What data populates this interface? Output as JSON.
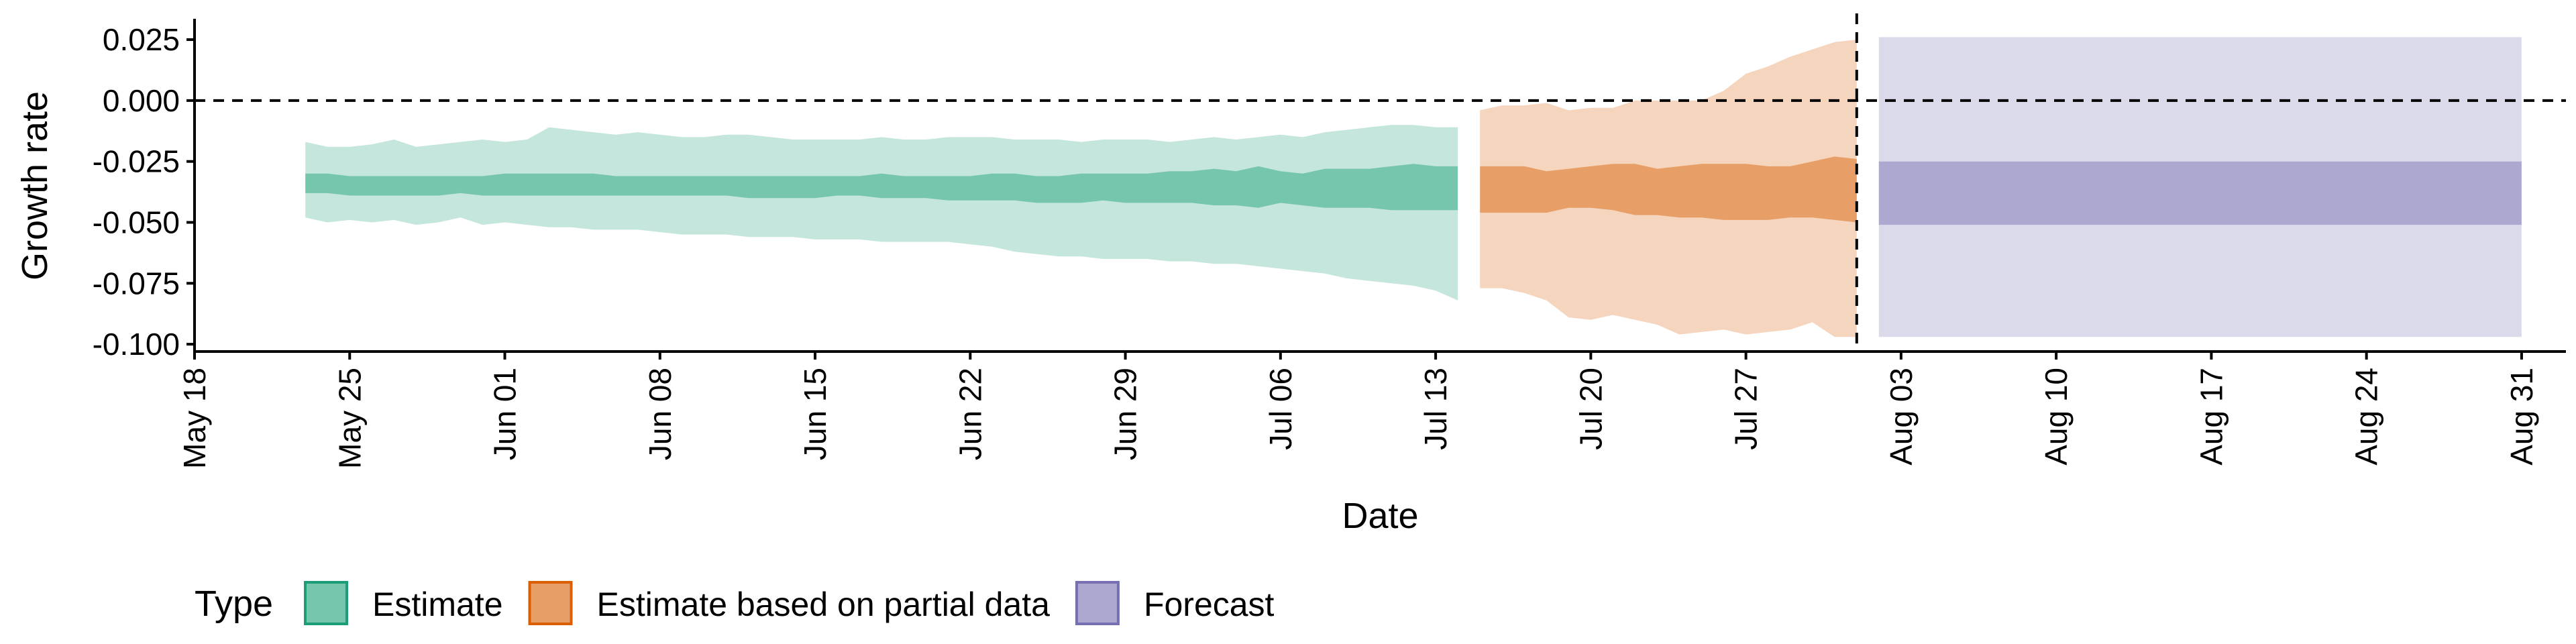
{
  "chart_data": {
    "type": "area",
    "title": "",
    "xlabel": "Date",
    "ylabel": "Growth rate",
    "x_range": [
      "2020-05-18",
      "2020-09-02"
    ],
    "ylim": [
      -0.103,
      0.033
    ],
    "x_ticks": [
      {
        "date": "2020-05-18",
        "label": "May 18"
      },
      {
        "date": "2020-05-25",
        "label": "May 25"
      },
      {
        "date": "2020-06-01",
        "label": "Jun 01"
      },
      {
        "date": "2020-06-08",
        "label": "Jun 08"
      },
      {
        "date": "2020-06-15",
        "label": "Jun 15"
      },
      {
        "date": "2020-06-22",
        "label": "Jun 22"
      },
      {
        "date": "2020-06-29",
        "label": "Jun 29"
      },
      {
        "date": "2020-07-06",
        "label": "Jul 06"
      },
      {
        "date": "2020-07-13",
        "label": "Jul 13"
      },
      {
        "date": "2020-07-20",
        "label": "Jul 20"
      },
      {
        "date": "2020-07-27",
        "label": "Jul 27"
      },
      {
        "date": "2020-08-03",
        "label": "Aug 03"
      },
      {
        "date": "2020-08-10",
        "label": "Aug 10"
      },
      {
        "date": "2020-08-17",
        "label": "Aug 17"
      },
      {
        "date": "2020-08-24",
        "label": "Aug 24"
      },
      {
        "date": "2020-08-31",
        "label": "Aug 31"
      }
    ],
    "y_ticks": [
      {
        "value": 0.025,
        "label": "0.025"
      },
      {
        "value": 0.0,
        "label": "0.000"
      },
      {
        "value": -0.025,
        "label": "-0.025"
      },
      {
        "value": -0.05,
        "label": "-0.050"
      },
      {
        "value": -0.075,
        "label": "-0.075"
      },
      {
        "value": -0.1,
        "label": "-0.100"
      }
    ],
    "reference_lines": [
      {
        "axis": "y",
        "value": 0.0,
        "style": "dashed"
      },
      {
        "axis": "x",
        "value": "2020-08-01",
        "style": "dashed"
      }
    ],
    "grid": false,
    "legend": {
      "title": "Type",
      "position": "bottom-left"
    },
    "series": [
      {
        "name": "Estimate",
        "color": "#1b9e77",
        "x": [
          "2020-05-23",
          "2020-05-24",
          "2020-05-25",
          "2020-05-26",
          "2020-05-27",
          "2020-05-28",
          "2020-05-29",
          "2020-05-30",
          "2020-05-31",
          "2020-06-01",
          "2020-06-02",
          "2020-06-03",
          "2020-06-04",
          "2020-06-05",
          "2020-06-06",
          "2020-06-07",
          "2020-06-08",
          "2020-06-09",
          "2020-06-10",
          "2020-06-11",
          "2020-06-12",
          "2020-06-13",
          "2020-06-14",
          "2020-06-15",
          "2020-06-16",
          "2020-06-17",
          "2020-06-18",
          "2020-06-19",
          "2020-06-20",
          "2020-06-21",
          "2020-06-22",
          "2020-06-23",
          "2020-06-24",
          "2020-06-25",
          "2020-06-26",
          "2020-06-27",
          "2020-06-28",
          "2020-06-29",
          "2020-06-30",
          "2020-07-01",
          "2020-07-02",
          "2020-07-03",
          "2020-07-04",
          "2020-07-05",
          "2020-07-06",
          "2020-07-07",
          "2020-07-08",
          "2020-07-09",
          "2020-07-10",
          "2020-07-11",
          "2020-07-12",
          "2020-07-13",
          "2020-07-14"
        ],
        "outer_upper": [
          -0.017,
          -0.019,
          -0.019,
          -0.018,
          -0.016,
          -0.019,
          -0.018,
          -0.017,
          -0.016,
          -0.017,
          -0.016,
          -0.011,
          -0.012,
          -0.013,
          -0.014,
          -0.013,
          -0.014,
          -0.015,
          -0.015,
          -0.014,
          -0.014,
          -0.015,
          -0.016,
          -0.016,
          -0.016,
          -0.016,
          -0.015,
          -0.016,
          -0.016,
          -0.015,
          -0.015,
          -0.015,
          -0.016,
          -0.016,
          -0.016,
          -0.017,
          -0.016,
          -0.016,
          -0.016,
          -0.017,
          -0.016,
          -0.015,
          -0.016,
          -0.015,
          -0.014,
          -0.015,
          -0.013,
          -0.012,
          -0.011,
          -0.01,
          -0.01,
          -0.011,
          -0.011
        ],
        "outer_lower": [
          -0.048,
          -0.05,
          -0.049,
          -0.05,
          -0.049,
          -0.051,
          -0.05,
          -0.048,
          -0.051,
          -0.05,
          -0.051,
          -0.052,
          -0.052,
          -0.053,
          -0.053,
          -0.053,
          -0.054,
          -0.055,
          -0.055,
          -0.055,
          -0.056,
          -0.056,
          -0.056,
          -0.057,
          -0.057,
          -0.057,
          -0.058,
          -0.058,
          -0.058,
          -0.058,
          -0.059,
          -0.06,
          -0.062,
          -0.063,
          -0.064,
          -0.064,
          -0.065,
          -0.065,
          -0.065,
          -0.066,
          -0.066,
          -0.067,
          -0.067,
          -0.068,
          -0.069,
          -0.07,
          -0.071,
          -0.073,
          -0.074,
          -0.075,
          -0.076,
          -0.078,
          -0.082
        ],
        "inner_upper": [
          -0.03,
          -0.03,
          -0.031,
          -0.031,
          -0.031,
          -0.031,
          -0.031,
          -0.031,
          -0.031,
          -0.03,
          -0.03,
          -0.03,
          -0.03,
          -0.03,
          -0.031,
          -0.031,
          -0.031,
          -0.031,
          -0.031,
          -0.031,
          -0.031,
          -0.031,
          -0.031,
          -0.031,
          -0.031,
          -0.031,
          -0.03,
          -0.031,
          -0.031,
          -0.031,
          -0.031,
          -0.03,
          -0.03,
          -0.031,
          -0.031,
          -0.03,
          -0.03,
          -0.03,
          -0.03,
          -0.029,
          -0.029,
          -0.028,
          -0.029,
          -0.027,
          -0.029,
          -0.03,
          -0.028,
          -0.028,
          -0.028,
          -0.027,
          -0.026,
          -0.027,
          -0.027
        ],
        "inner_lower": [
          -0.038,
          -0.038,
          -0.039,
          -0.039,
          -0.039,
          -0.039,
          -0.039,
          -0.038,
          -0.039,
          -0.039,
          -0.039,
          -0.039,
          -0.039,
          -0.039,
          -0.039,
          -0.039,
          -0.039,
          -0.039,
          -0.039,
          -0.039,
          -0.04,
          -0.04,
          -0.04,
          -0.04,
          -0.039,
          -0.039,
          -0.04,
          -0.04,
          -0.04,
          -0.041,
          -0.041,
          -0.041,
          -0.041,
          -0.042,
          -0.042,
          -0.042,
          -0.041,
          -0.042,
          -0.042,
          -0.042,
          -0.042,
          -0.043,
          -0.043,
          -0.044,
          -0.042,
          -0.043,
          -0.044,
          -0.044,
          -0.044,
          -0.045,
          -0.045,
          -0.045,
          -0.045
        ]
      },
      {
        "name": "Estimate based on partial data",
        "color": "#d95f02",
        "x": [
          "2020-07-15",
          "2020-07-16",
          "2020-07-17",
          "2020-07-18",
          "2020-07-19",
          "2020-07-20",
          "2020-07-21",
          "2020-07-22",
          "2020-07-23",
          "2020-07-24",
          "2020-07-25",
          "2020-07-26",
          "2020-07-27",
          "2020-07-28",
          "2020-07-29",
          "2020-07-30",
          "2020-07-31",
          "2020-08-01"
        ],
        "outer_upper": [
          -0.004,
          -0.002,
          -0.002,
          -0.001,
          -0.004,
          -0.003,
          -0.003,
          0.0,
          0.0,
          0.0,
          0.0,
          0.004,
          0.011,
          0.014,
          0.018,
          0.021,
          0.024,
          0.025
        ],
        "outer_lower": [
          -0.077,
          -0.077,
          -0.079,
          -0.082,
          -0.089,
          -0.09,
          -0.088,
          -0.09,
          -0.092,
          -0.096,
          -0.095,
          -0.094,
          -0.096,
          -0.095,
          -0.094,
          -0.091,
          -0.097,
          -0.097
        ],
        "inner_upper": [
          -0.027,
          -0.027,
          -0.027,
          -0.029,
          -0.028,
          -0.027,
          -0.026,
          -0.026,
          -0.028,
          -0.027,
          -0.026,
          -0.026,
          -0.026,
          -0.027,
          -0.027,
          -0.025,
          -0.023,
          -0.024
        ],
        "inner_lower": [
          -0.046,
          -0.046,
          -0.046,
          -0.046,
          -0.044,
          -0.044,
          -0.045,
          -0.047,
          -0.047,
          -0.048,
          -0.048,
          -0.049,
          -0.049,
          -0.049,
          -0.048,
          -0.048,
          -0.049,
          -0.05
        ]
      },
      {
        "name": "Forecast",
        "color": "#7570b3",
        "x": [
          "2020-08-02",
          "2020-08-31"
        ],
        "outer_upper": [
          0.026,
          0.026
        ],
        "outer_lower": [
          -0.097,
          -0.097
        ],
        "inner_upper": [
          -0.025,
          -0.025
        ],
        "inner_lower": [
          -0.051,
          -0.051
        ]
      }
    ]
  }
}
